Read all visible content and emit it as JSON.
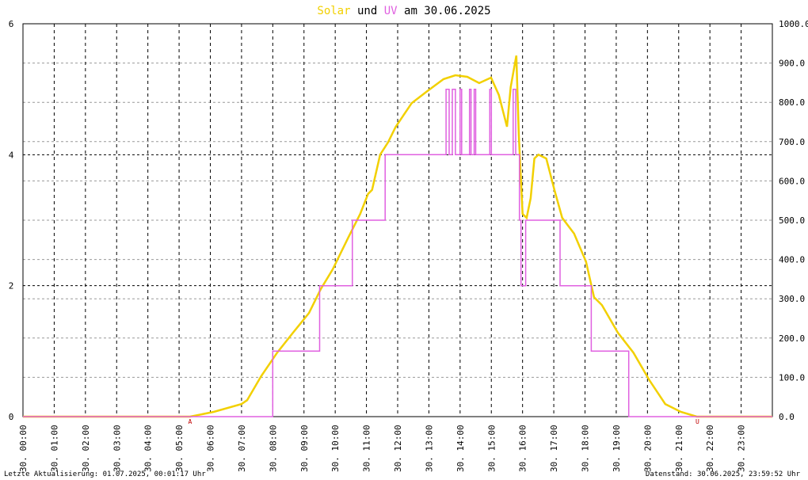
{
  "chart_data": {
    "type": "line",
    "title": {
      "solar": "Solar",
      "connector": "und",
      "uv": "UV",
      "suffix": "am 30.06.2025"
    },
    "xlim": [
      0,
      24
    ],
    "xticks": [
      {
        "value": 0,
        "label": "30. 00:00"
      },
      {
        "value": 1,
        "label": "30. 01:00"
      },
      {
        "value": 2,
        "label": "30. 02:00"
      },
      {
        "value": 3,
        "label": "30. 03:00"
      },
      {
        "value": 4,
        "label": "30. 04:00"
      },
      {
        "value": 5,
        "label": "30. 05:00"
      },
      {
        "value": 6,
        "label": "30. 06:00"
      },
      {
        "value": 7,
        "label": "30. 07:00"
      },
      {
        "value": 8,
        "label": "30. 08:00"
      },
      {
        "value": 9,
        "label": "30. 09:00"
      },
      {
        "value": 10,
        "label": "30. 10:00"
      },
      {
        "value": 11,
        "label": "30. 11:00"
      },
      {
        "value": 12,
        "label": "30. 12:00"
      },
      {
        "value": 13,
        "label": "30. 13:00"
      },
      {
        "value": 14,
        "label": "30. 14:00"
      },
      {
        "value": 15,
        "label": "30. 15:00"
      },
      {
        "value": 16,
        "label": "30. 16:00"
      },
      {
        "value": 17,
        "label": "30. 17:00"
      },
      {
        "value": 18,
        "label": "30. 18:00"
      },
      {
        "value": 19,
        "label": "30. 19:00"
      },
      {
        "value": 20,
        "label": "30. 20:00"
      },
      {
        "value": 21,
        "label": "30. 21:00"
      },
      {
        "value": 22,
        "label": "30. 22:00"
      },
      {
        "value": 23,
        "label": "30. 23:00"
      }
    ],
    "ylim": [
      0,
      6
    ],
    "yticks": [
      0,
      2,
      4,
      6
    ],
    "y2lim": [
      0,
      1000
    ],
    "y2ticks": [
      {
        "value": 0,
        "label": "0.0"
      },
      {
        "value": 100,
        "label": "100.0"
      },
      {
        "value": 200,
        "label": "200.0"
      },
      {
        "value": 300,
        "label": "300.0"
      },
      {
        "value": 400,
        "label": "400.0"
      },
      {
        "value": 500,
        "label": "500.0"
      },
      {
        "value": 600,
        "label": "600.0"
      },
      {
        "value": 700,
        "label": "700.0"
      },
      {
        "value": 800,
        "label": "800.0"
      },
      {
        "value": 900,
        "label": "900.0"
      },
      {
        "value": 1000,
        "label": "1000.0"
      }
    ],
    "grid": true,
    "series": [
      {
        "name": "Solar",
        "color": "#f2d000",
        "axis": "y2",
        "x": [
          0,
          5.35,
          6.11,
          7.0,
          7.18,
          7.63,
          8.14,
          8.65,
          9.16,
          9.54,
          9.92,
          10.42,
          10.8,
          11.05,
          11.18,
          11.44,
          11.69,
          11.94,
          12.45,
          12.96,
          13.47,
          13.85,
          14.23,
          14.61,
          14.99,
          15.24,
          15.5,
          15.62,
          15.8,
          15.88,
          16.0,
          16.13,
          16.26,
          16.38,
          16.51,
          16.76,
          17.02,
          17.27,
          17.65,
          18.03,
          18.29,
          18.54,
          19.05,
          19.55,
          20.06,
          20.57,
          21.07,
          21.58,
          24
        ],
        "values": [
          0,
          0,
          12,
          32,
          42,
          103,
          163,
          214,
          264,
          325,
          375,
          456,
          516,
          567,
          577,
          667,
          698,
          738,
          798,
          829,
          859,
          869,
          865,
          849,
          863,
          819,
          738,
          839,
          919,
          718,
          516,
          506,
          556,
          657,
          667,
          657,
          577,
          506,
          466,
          395,
          304,
          284,
          214,
          163,
          93,
          32,
          12,
          0,
          0
        ]
      },
      {
        "name": "UV",
        "color": "#e060e0",
        "axis": "y",
        "x": [
          0,
          8.0,
          8.0,
          9.5,
          9.5,
          10.55,
          10.55,
          11.6,
          11.6,
          13.55,
          13.55,
          13.65,
          13.65,
          13.75,
          13.75,
          13.85,
          13.85,
          14.0,
          14.0,
          14.05,
          14.05,
          14.3,
          14.3,
          14.35,
          14.35,
          14.45,
          14.45,
          14.5,
          14.5,
          14.95,
          14.95,
          15.0,
          15.0,
          15.7,
          15.7,
          15.78,
          15.78,
          15.9,
          15.9,
          15.95,
          15.95,
          16.1,
          16.1,
          17.2,
          17.2,
          18.2,
          18.2,
          19.4,
          19.4,
          24
        ],
        "values": [
          0,
          0,
          1,
          1,
          2,
          2,
          3,
          3,
          4,
          4,
          5,
          5,
          4,
          4,
          5,
          5,
          4,
          4,
          5,
          5,
          4,
          4,
          5,
          5,
          4,
          4,
          5,
          5,
          4,
          4,
          5,
          5,
          4,
          4,
          5,
          5,
          4,
          4,
          3,
          3,
          2,
          2,
          3,
          3,
          2,
          2,
          1,
          1,
          0,
          0
        ]
      }
    ],
    "annotations": [
      {
        "text": "A",
        "x": 5.35
      },
      {
        "text": "U",
        "x": 21.6
      }
    ],
    "footer": {
      "left": "Letzte Aktualisierung: 01.07.2025, 00:01:17 Uhr",
      "right": "Datenstand: 30.06.2025, 23:59:52 Uhr"
    }
  }
}
